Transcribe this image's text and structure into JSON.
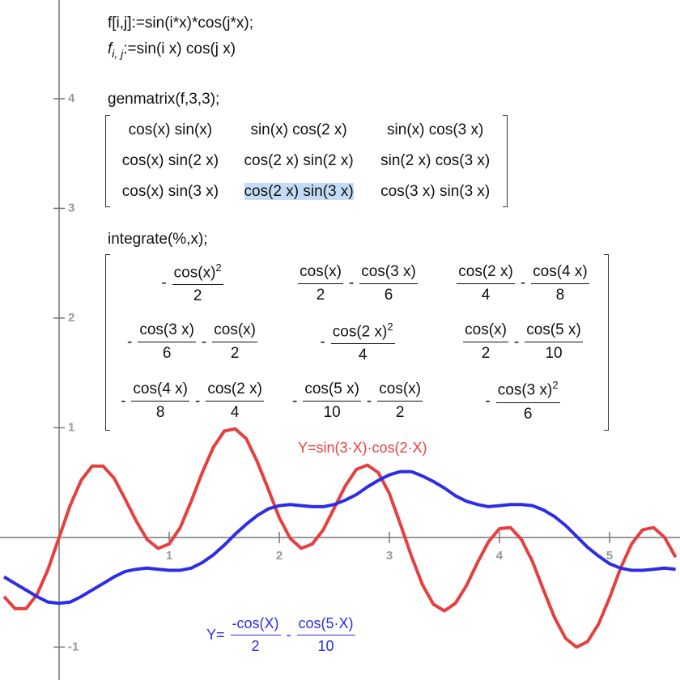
{
  "worksheet": {
    "input1": "f[i,j]:=sin(i*x)*cos(j*x);",
    "output1": {
      "name": "f",
      "subscript": "i, j",
      "body": ":=sin(i x) cos(j x)"
    },
    "input2": "genmatrix(f,3,3);",
    "matrix1": [
      [
        "cos(x) sin(x)",
        "sin(x) cos(2 x)",
        "sin(x) cos(3 x)"
      ],
      [
        "cos(x) sin(2 x)",
        "cos(2 x) sin(2 x)",
        "sin(2 x) cos(3 x)"
      ],
      [
        "cos(x) sin(3 x)",
        "cos(2 x) sin(3 x)",
        "cos(3 x) sin(3 x)"
      ]
    ],
    "selected_cell": [
      2,
      1
    ],
    "input3": "integrate(%,x);",
    "matrix2": [
      [
        [
          {
            "sign": "-",
            "num": "cos(x)",
            "exp": "2",
            "den": "2"
          }
        ],
        [
          {
            "num": "cos(x)",
            "den": "2"
          },
          {
            "sign": "-",
            "num": "cos(3 x)",
            "den": "6"
          }
        ],
        [
          {
            "num": "cos(2 x)",
            "den": "4"
          },
          {
            "sign": "-",
            "num": "cos(4 x)",
            "den": "8"
          }
        ]
      ],
      [
        [
          {
            "sign": "-",
            "num": "cos(3 x)",
            "den": "6"
          },
          {
            "sign": "-",
            "num": "cos(x)",
            "den": "2"
          }
        ],
        [
          {
            "sign": "-",
            "num": "cos(2 x)",
            "exp": "2",
            "den": "4"
          }
        ],
        [
          {
            "num": "cos(x)",
            "den": "2"
          },
          {
            "sign": "-",
            "num": "cos(5 x)",
            "den": "10"
          }
        ]
      ],
      [
        [
          {
            "sign": "-",
            "num": "cos(4 x)",
            "den": "8"
          },
          {
            "sign": "-",
            "num": "cos(2 x)",
            "den": "4"
          }
        ],
        [
          {
            "sign": "-",
            "num": "cos(5 x)",
            "den": "10"
          },
          {
            "sign": "-",
            "num": "cos(x)",
            "den": "2"
          }
        ],
        [
          {
            "sign": "-",
            "num": "cos(3 x)",
            "exp": "2",
            "den": "6"
          }
        ]
      ]
    ]
  },
  "chart_data": {
    "type": "line",
    "xlim": [
      -0.537,
      5.64
    ],
    "ylim": [
      -1.3,
      4.9
    ],
    "xticks": [
      1,
      2,
      3,
      4,
      5
    ],
    "yticks": [
      -1,
      1,
      2,
      3,
      4
    ],
    "x": [
      -0.5,
      -0.4,
      -0.3,
      -0.2,
      -0.1,
      0,
      0.1,
      0.2,
      0.3,
      0.4,
      0.5,
      0.6,
      0.7,
      0.8,
      0.9,
      1,
      1.1,
      1.2,
      1.3,
      1.4,
      1.5,
      1.6,
      1.7,
      1.8,
      1.9,
      2,
      2.1,
      2.2,
      2.3,
      2.4,
      2.5,
      2.6,
      2.7,
      2.8,
      2.9,
      3,
      3.1,
      3.2,
      3.3,
      3.4,
      3.5,
      3.6,
      3.7,
      3.8,
      3.9,
      4,
      4.1,
      4.2,
      4.3,
      4.4,
      4.5,
      4.6,
      4.7,
      4.8,
      4.9,
      5,
      5.1,
      5.2,
      5.3,
      5.4,
      5.5,
      5.6
    ],
    "series": [
      {
        "label": "Y=sin(3·X)·cos(2·X)",
        "color": "#e5403f",
        "values": [
          -0.54,
          -0.65,
          -0.65,
          -0.52,
          -0.29,
          0,
          0.29,
          0.52,
          0.65,
          0.65,
          0.54,
          0.35,
          0.15,
          -0.02,
          -0.1,
          -0.06,
          0.09,
          0.33,
          0.59,
          0.82,
          0.97,
          0.99,
          0.9,
          0.69,
          0.44,
          0.18,
          -0.01,
          -0.1,
          -0.06,
          0.07,
          0.27,
          0.47,
          0.62,
          0.66,
          0.59,
          0.4,
          0.12,
          -0.17,
          -0.43,
          -0.61,
          -0.67,
          -0.6,
          -0.44,
          -0.23,
          -0.04,
          0.08,
          0.09,
          -0.02,
          -0.22,
          -0.48,
          -0.73,
          -0.92,
          -1,
          -0.95,
          -0.79,
          -0.55,
          -0.28,
          -0.06,
          0.07,
          0.09,
          0,
          -0.18
        ]
      },
      {
        "label": {
          "prefix": "Y=",
          "terms": [
            {
              "num": "-cos(X)",
              "den": "2"
            },
            {
              "sign": "-",
              "num": "cos(5·X)",
              "den": "10"
            }
          ]
        },
        "color": "#2d2de6",
        "values": [
          -0.36,
          -0.42,
          -0.48,
          -0.54,
          -0.59,
          -0.6,
          -0.59,
          -0.54,
          -0.48,
          -0.42,
          -0.36,
          -0.31,
          -0.29,
          -0.28,
          -0.29,
          -0.3,
          -0.3,
          -0.28,
          -0.23,
          -0.16,
          -0.07,
          0.03,
          0.12,
          0.2,
          0.26,
          0.29,
          0.3,
          0.29,
          0.28,
          0.28,
          0.3,
          0.34,
          0.39,
          0.46,
          0.52,
          0.57,
          0.6,
          0.6,
          0.56,
          0.51,
          0.45,
          0.38,
          0.33,
          0.3,
          0.28,
          0.29,
          0.3,
          0.3,
          0.29,
          0.25,
          0.19,
          0.11,
          0.01,
          -0.09,
          -0.17,
          -0.24,
          -0.28,
          -0.3,
          -0.3,
          -0.29,
          -0.28,
          -0.29
        ]
      }
    ]
  }
}
